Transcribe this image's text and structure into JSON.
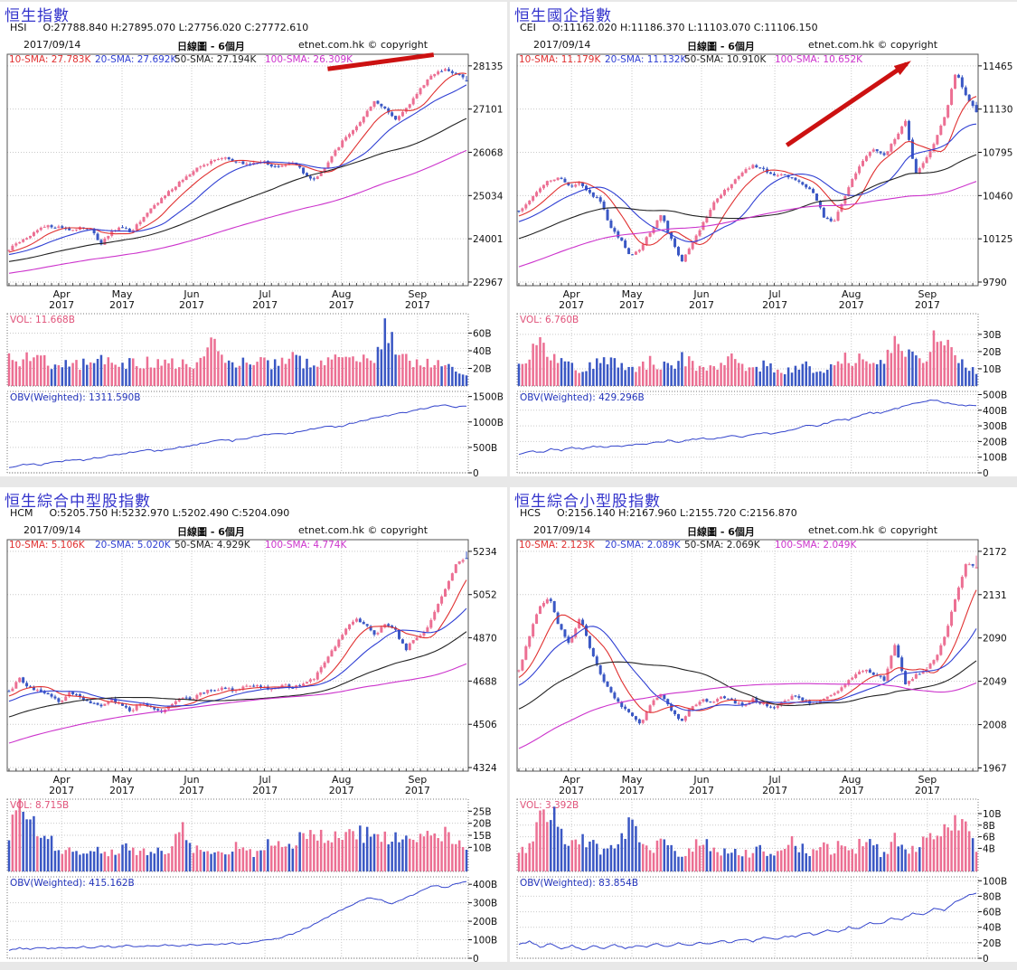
{
  "page": {
    "background": "#e8e8e8"
  },
  "colors": {
    "title": "#3333cc",
    "up_candle": "#ec6f93",
    "down_candle": "#3a57c4",
    "sma": [
      "#e03030",
      "#2f3fd3",
      "#222222",
      "#cc33cc"
    ],
    "obv_line": "#3344cc",
    "vol_label": "#e0537a",
    "obv_label": "#2233bb",
    "grid": "#c9c9c9",
    "axis_text": "#111111",
    "annotation": "#cc1111",
    "border": "#555555"
  },
  "months": {
    "labels": [
      "Apr",
      "May",
      "Jun",
      "Jul",
      "Aug",
      "Sep"
    ],
    "year": "2017",
    "fractions": [
      0.118,
      0.249,
      0.4,
      0.559,
      0.725,
      0.89
    ]
  },
  "chart_data": [
    {
      "type": "candlestick+volume+obv",
      "title": "恒生指數",
      "symbol": "HSI",
      "ohlc_text": "O:27788.840 H:27895.070 L:27756.020 C:27772.610",
      "ohlc": {
        "open": 27788.84,
        "high": 27895.07,
        "low": 27756.02,
        "close": 27772.61
      },
      "date": "2017/09/14",
      "period": "日線圖 - 6個月",
      "copyright": "etnet.com.hk © copyright",
      "sma_legend": [
        {
          "label": "10-SMA: 27.783K",
          "window": 10
        },
        {
          "label": "20-SMA: 27.692K",
          "window": 20
        },
        {
          "label": "50-SMA: 27.194K",
          "window": 50
        },
        {
          "label": "100-SMA: 26.309K",
          "window": 100
        }
      ],
      "price_axis": {
        "ticks": [
          28135,
          27101,
          26068,
          25034,
          24001,
          22967
        ],
        "ylim": [
          22880,
          28412
        ]
      },
      "close_path": [
        23760,
        23900,
        24080,
        24260,
        24310,
        24270,
        24220,
        24260,
        24290,
        23860,
        24160,
        24280,
        24170,
        24450,
        24740,
        24960,
        25180,
        25390,
        25600,
        25740,
        25870,
        25940,
        25880,
        25780,
        25820,
        25860,
        25700,
        25780,
        25850,
        25560,
        25420,
        25680,
        26060,
        26390,
        26660,
        26950,
        27280,
        27080,
        26870,
        27100,
        27450,
        27750,
        27980,
        28060,
        27950,
        27772
      ],
      "prehistory_start": 22500,
      "volume": {
        "label": "VOL: 11.668B",
        "ticks": [
          {
            "v": 60,
            "label": "60B"
          },
          {
            "v": 40,
            "label": "40B"
          },
          {
            "v": 20,
            "label": "20B"
          }
        ],
        "max": 82,
        "anchors": [
          30,
          26,
          34,
          30,
          26,
          24,
          28,
          24,
          27,
          36,
          25,
          22,
          26,
          28,
          26,
          30,
          27,
          24,
          26,
          30,
          62,
          30,
          26,
          28,
          25,
          27,
          24,
          28,
          31,
          27,
          25,
          29,
          33,
          30,
          36,
          30,
          28,
          75,
          42,
          31,
          29,
          27,
          31,
          25,
          18,
          12
        ]
      },
      "obv": {
        "label": "OBV(Weighted): 1311.590B",
        "ticks": [
          {
            "v": 1500,
            "label": "1500B"
          },
          {
            "v": 1000,
            "label": "1000B"
          },
          {
            "v": 500,
            "label": "500B"
          },
          {
            "v": 0,
            "label": "0"
          }
        ],
        "max": 1600,
        "anchors": [
          110,
          150,
          170,
          160,
          200,
          230,
          260,
          250,
          290,
          320,
          350,
          390,
          420,
          450,
          430,
          470,
          500,
          540,
          570,
          610,
          650,
          630,
          670,
          700,
          740,
          770,
          750,
          800,
          840,
          880,
          920,
          900,
          960,
          1010,
          1060,
          1100,
          1140,
          1180,
          1230,
          1270,
          1310,
          1340,
          1290,
          1311
        ]
      },
      "annotation": {
        "kind": "line",
        "f1": 0.695,
        "v1": 28060,
        "f2": 0.925,
        "v2": 28400
      }
    },
    {
      "type": "candlestick+volume+obv",
      "title": "恒生國企指數",
      "symbol": "CEI",
      "ohlc_text": "O:11162.020 H:11186.370 L:11103.070 C:11106.150",
      "ohlc": {
        "open": 11162.02,
        "high": 11186.37,
        "low": 11103.07,
        "close": 11106.15
      },
      "date": "2017/09/14",
      "period": "日線圖 - 6個月",
      "copyright": "etnet.com.hk © copyright",
      "sma_legend": [
        {
          "label": "10-SMA: 11.179K",
          "window": 10
        },
        {
          "label": "20-SMA: 11.132K",
          "window": 20
        },
        {
          "label": "50-SMA: 10.910K",
          "window": 50
        },
        {
          "label": "100-SMA: 10.652K",
          "window": 100
        }
      ],
      "price_axis": {
        "ticks": [
          11465,
          11130,
          10795,
          10460,
          10125,
          9790
        ],
        "ylim": [
          9762,
          11555
        ]
      },
      "close_path": [
        10340,
        10420,
        10510,
        10580,
        10610,
        10520,
        10560,
        10480,
        10420,
        10220,
        10120,
        9980,
        10060,
        10190,
        10310,
        10120,
        9940,
        10080,
        10230,
        10380,
        10480,
        10560,
        10640,
        10700,
        10660,
        10620,
        10630,
        10590,
        10540,
        10480,
        10300,
        10260,
        10440,
        10620,
        10760,
        10820,
        10780,
        10900,
        11050,
        10620,
        10740,
        10890,
        11100,
        11420,
        11230,
        11106
      ],
      "prehistory_start": 9380,
      "volume": {
        "label": "VOL: 6.760B",
        "ticks": [
          {
            "v": 30,
            "label": "30B"
          },
          {
            "v": 20,
            "label": "20B"
          },
          {
            "v": 10,
            "label": "10B"
          }
        ],
        "max": 42,
        "anchors": [
          14,
          12,
          32,
          18,
          14,
          12,
          10,
          12,
          14,
          16,
          12,
          10,
          12,
          14,
          12,
          10,
          18,
          12,
          10,
          12,
          14,
          16,
          12,
          10,
          12,
          10,
          8,
          10,
          12,
          10,
          8,
          12,
          16,
          14,
          18,
          16,
          14,
          30,
          22,
          16,
          14,
          35,
          28,
          18,
          12,
          7
        ]
      },
      "obv": {
        "label": "OBV(Weighted): 429.296B",
        "ticks": [
          {
            "v": 500,
            "label": "500B"
          },
          {
            "v": 400,
            "label": "400B"
          },
          {
            "v": 300,
            "label": "300B"
          },
          {
            "v": 200,
            "label": "200B"
          },
          {
            "v": 100,
            "label": "100B"
          },
          {
            "v": 0,
            "label": "0"
          }
        ],
        "max": 520,
        "anchors": [
          120,
          140,
          130,
          150,
          145,
          160,
          150,
          170,
          160,
          175,
          170,
          185,
          180,
          195,
          205,
          195,
          210,
          220,
          215,
          225,
          235,
          230,
          245,
          255,
          250,
          265,
          285,
          305,
          295,
          320,
          345,
          340,
          365,
          385,
          380,
          400,
          420,
          440,
          455,
          465,
          450,
          435,
          430,
          429
        ]
      },
      "annotation": {
        "kind": "arrow",
        "f1": 0.585,
        "v1": 10850,
        "f2": 0.845,
        "v2": 11480
      }
    },
    {
      "type": "candlestick+volume+obv",
      "title": "恒生綜合中型股指數",
      "symbol": "HCM",
      "ohlc_text": "O:5205.750 H:5232.970 L:5202.490 C:5204.090",
      "ohlc": {
        "open": 5205.75,
        "high": 5232.97,
        "low": 5202.49,
        "close": 5204.09
      },
      "date": "2017/09/14",
      "period": "日線圖 - 6個月",
      "copyright": "etnet.com.hk © copyright",
      "sma_legend": [
        {
          "label": "10-SMA: 5.106K",
          "window": 10
        },
        {
          "label": "20-SMA: 5.020K",
          "window": 20
        },
        {
          "label": "50-SMA: 4.929K",
          "window": 50
        },
        {
          "label": "100-SMA: 4.774K",
          "window": 100
        }
      ],
      "price_axis": {
        "ticks": [
          5234,
          5052,
          4870,
          4688,
          4506,
          4324
        ],
        "ylim": [
          4309,
          5283
        ]
      },
      "close_path": [
        4640,
        4700,
        4660,
        4650,
        4630,
        4600,
        4640,
        4620,
        4600,
        4580,
        4610,
        4590,
        4560,
        4600,
        4580,
        4560,
        4590,
        4620,
        4610,
        4640,
        4650,
        4660,
        4650,
        4660,
        4670,
        4660,
        4650,
        4670,
        4660,
        4680,
        4700,
        4760,
        4830,
        4900,
        4950,
        4930,
        4880,
        4930,
        4900,
        4820,
        4870,
        4900,
        4990,
        5090,
        5180,
        5204
      ],
      "prehistory_start": 4160,
      "volume": {
        "label": "VOL: 8.715B",
        "ticks": [
          {
            "v": 25,
            "label": "25B"
          },
          {
            "v": 20,
            "label": "20B"
          },
          {
            "v": 15,
            "label": "15B"
          },
          {
            "v": 10,
            "label": "10B"
          }
        ],
        "max": 30,
        "anchors": [
          14,
          28,
          20,
          16,
          12,
          10,
          9,
          8,
          10,
          9,
          8,
          10,
          9,
          8,
          9,
          10,
          9,
          17,
          10,
          9,
          8,
          9,
          10,
          9,
          8,
          10,
          11,
          12,
          13,
          14,
          15,
          16,
          14,
          15,
          16,
          15,
          14,
          13,
          15,
          17,
          16,
          14,
          15,
          16,
          12,
          9
        ]
      },
      "obv": {
        "label": "OBV(Weighted): 415.162B",
        "ticks": [
          {
            "v": 400,
            "label": "400B"
          },
          {
            "v": 300,
            "label": "300B"
          },
          {
            "v": 200,
            "label": "200B"
          },
          {
            "v": 100,
            "label": "100B"
          },
          {
            "v": 0,
            "label": "0"
          }
        ],
        "max": 440,
        "anchors": [
          45,
          55,
          48,
          58,
          52,
          60,
          55,
          62,
          58,
          65,
          60,
          68,
          64,
          70,
          66,
          72,
          68,
          75,
          72,
          78,
          75,
          82,
          80,
          88,
          95,
          105,
          120,
          140,
          165,
          195,
          225,
          255,
          285,
          310,
          330,
          315,
          295,
          315,
          345,
          375,
          395,
          380,
          400,
          415
        ]
      },
      "annotation": null
    },
    {
      "type": "candlestick+volume+obv",
      "title": "恒生綜合小型股指數",
      "symbol": "HCS",
      "ohlc_text": "O:2156.140 H:2167.960 L:2155.720 C:2156.870",
      "ohlc": {
        "open": 2156.14,
        "high": 2167.96,
        "low": 2155.72,
        "close": 2156.87
      },
      "date": "2017/09/14",
      "period": "日線圖 - 6個月",
      "copyright": "etnet.com.hk © copyright",
      "sma_legend": [
        {
          "label": "10-SMA: 2.123K",
          "window": 10
        },
        {
          "label": "20-SMA: 2.089K",
          "window": 20
        },
        {
          "label": "50-SMA: 2.069K",
          "window": 50
        },
        {
          "label": "100-SMA: 2.049K",
          "window": 100
        }
      ],
      "price_axis": {
        "ticks": [
          2172,
          2131,
          2090,
          2049,
          2008,
          1967
        ],
        "ylim": [
          1964,
          2183
        ]
      },
      "close_path": [
        2060,
        2090,
        2120,
        2128,
        2100,
        2085,
        2110,
        2080,
        2055,
        2040,
        2025,
        2018,
        2008,
        2028,
        2038,
        2020,
        2012,
        2025,
        2032,
        2028,
        2035,
        2030,
        2026,
        2032,
        2028,
        2022,
        2030,
        2035,
        2030,
        2028,
        2032,
        2038,
        2045,
        2055,
        2060,
        2055,
        2050,
        2085,
        2045,
        2055,
        2060,
        2070,
        2095,
        2130,
        2160,
        2157
      ],
      "prehistory_start": 1895,
      "volume": {
        "label": "VOL: 3.392B",
        "ticks": [
          {
            "v": 10,
            "label": "10B"
          },
          {
            "v": 8,
            "label": "8B"
          },
          {
            "v": 6,
            "label": "6B"
          },
          {
            "v": 4,
            "label": "4B"
          }
        ],
        "max": 12.5,
        "anchors": [
          3,
          5,
          8,
          11,
          7,
          5,
          6,
          5,
          4,
          5,
          6,
          8,
          5,
          4,
          5,
          4,
          3,
          4,
          5,
          4,
          3,
          4,
          3,
          3,
          4,
          3,
          4,
          5,
          4,
          3,
          4,
          4,
          5,
          4,
          5,
          4,
          3,
          6,
          4,
          4,
          5,
          6,
          7,
          9,
          8,
          3.4
        ]
      },
      "obv": {
        "label": "OBV(Weighted): 83.854B",
        "ticks": [
          {
            "v": 100,
            "label": "100B"
          },
          {
            "v": 80,
            "label": "80B"
          },
          {
            "v": 60,
            "label": "60B"
          },
          {
            "v": 40,
            "label": "40B"
          },
          {
            "v": 20,
            "label": "20B"
          },
          {
            "v": 0,
            "label": "0"
          }
        ],
        "max": 105,
        "anchors": [
          18,
          22,
          14,
          19,
          12,
          17,
          11,
          16,
          13,
          18,
          12,
          16,
          14,
          19,
          15,
          20,
          16,
          21,
          18,
          23,
          20,
          25,
          22,
          27,
          24,
          28,
          28,
          33,
          30,
          36,
          33,
          40,
          38,
          46,
          44,
          52,
          50,
          58,
          56,
          64,
          62,
          72,
          80,
          84
        ]
      },
      "annotation": null
    }
  ]
}
